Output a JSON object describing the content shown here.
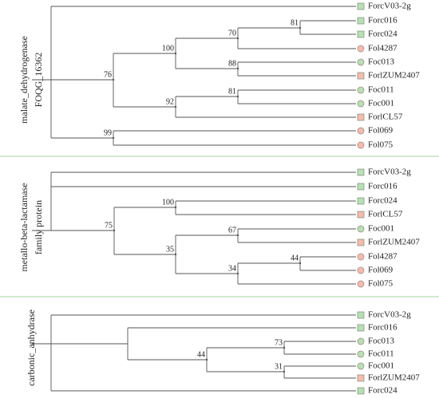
{
  "panels": [
    {
      "gene": [
        "malate_dehydrogenase",
        "FOQG_16362"
      ],
      "leaves": [
        {
          "name": "ForcV03-2g",
          "marker": "square",
          "color": "#b8dfb5"
        },
        {
          "name": "Forc016",
          "marker": "square",
          "color": "#b8dfb5"
        },
        {
          "name": "Forc024",
          "marker": "square",
          "color": "#b8dfb5"
        },
        {
          "name": "Fol4287",
          "marker": "circle",
          "color": "#f5bcae"
        },
        {
          "name": "Foc013",
          "marker": "circle",
          "color": "#b8dfb5"
        },
        {
          "name": "ForlZUM2407",
          "marker": "square",
          "color": "#f5bcae"
        },
        {
          "name": "Foc011",
          "marker": "circle",
          "color": "#b8dfb5"
        },
        {
          "name": "Foc001",
          "marker": "circle",
          "color": "#b8dfb5"
        },
        {
          "name": "ForlCL57",
          "marker": "square",
          "color": "#f5bcae"
        },
        {
          "name": "Fol069",
          "marker": "circle",
          "color": "#f5bcae"
        },
        {
          "name": "Fol075",
          "marker": "circle",
          "color": "#f5bcae"
        }
      ],
      "support": [
        81,
        70,
        100,
        88,
        76,
        92,
        81,
        99
      ]
    },
    {
      "gene": [
        "metallo-beta-lactamase",
        "family protein"
      ],
      "leaves": [
        {
          "name": "ForcV03-2g",
          "marker": "square",
          "color": "#b8dfb5"
        },
        {
          "name": "Forc016",
          "marker": "square",
          "color": "#b8dfb5"
        },
        {
          "name": "Forc024",
          "marker": "square",
          "color": "#b8dfb5"
        },
        {
          "name": "ForlCL57",
          "marker": "square",
          "color": "#f5bcae"
        },
        {
          "name": "Foc001",
          "marker": "circle",
          "color": "#b8dfb5"
        },
        {
          "name": "ForlZUM2407",
          "marker": "square",
          "color": "#f5bcae"
        },
        {
          "name": "Fol4287",
          "marker": "circle",
          "color": "#f5bcae"
        },
        {
          "name": "Fol069",
          "marker": "circle",
          "color": "#f5bcae"
        },
        {
          "name": "Fol075",
          "marker": "circle",
          "color": "#f5bcae"
        }
      ],
      "support": [
        100,
        75,
        67,
        35,
        44,
        34
      ]
    },
    {
      "gene": [
        "carbonic_anhydrase"
      ],
      "leaves": [
        {
          "name": "ForcV03-2g",
          "marker": "square",
          "color": "#b8dfb5"
        },
        {
          "name": "Forc016",
          "marker": "square",
          "color": "#b8dfb5"
        },
        {
          "name": "Foc013",
          "marker": "circle",
          "color": "#b8dfb5"
        },
        {
          "name": "Foc011",
          "marker": "circle",
          "color": "#b8dfb5"
        },
        {
          "name": "Foc001",
          "marker": "circle",
          "color": "#b8dfb5"
        },
        {
          "name": "ForlZUM2407",
          "marker": "square",
          "color": "#f5bcae"
        },
        {
          "name": "Forc024",
          "marker": "square",
          "color": "#b8dfb5"
        }
      ],
      "support": [
        73,
        44,
        31
      ]
    }
  ]
}
